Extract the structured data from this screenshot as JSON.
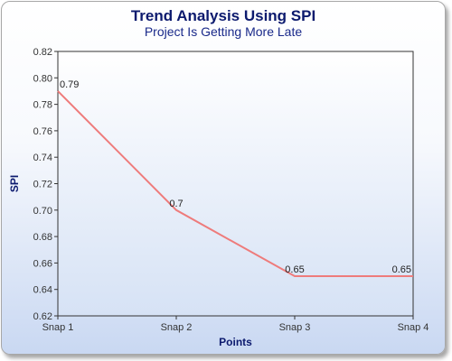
{
  "chart_data": {
    "type": "line",
    "title": "Trend Analysis Using SPI",
    "subtitle": "Project Is Getting More Late",
    "xlabel": "Points",
    "ylabel": "SPI",
    "categories": [
      "Snap 1",
      "Snap 2",
      "Snap 3",
      "Snap 4"
    ],
    "series": [
      {
        "values": [
          0.79,
          0.7,
          0.65,
          0.65
        ],
        "labels": [
          "0.79",
          "0.7",
          "0.65",
          "0.65"
        ],
        "color": "#ee7b7b"
      }
    ],
    "ylim": [
      0.62,
      0.82
    ],
    "yticks": [
      "0.82",
      "0.80",
      "0.78",
      "0.76",
      "0.74",
      "0.72",
      "0.70",
      "0.68",
      "0.66",
      "0.64",
      "0.62"
    ],
    "grid": false,
    "legend": "none",
    "colors": {
      "title": "#0c1a6e",
      "plot_bg_top": "#ffffff",
      "plot_bg_bottom": "#d6e2f5"
    }
  }
}
